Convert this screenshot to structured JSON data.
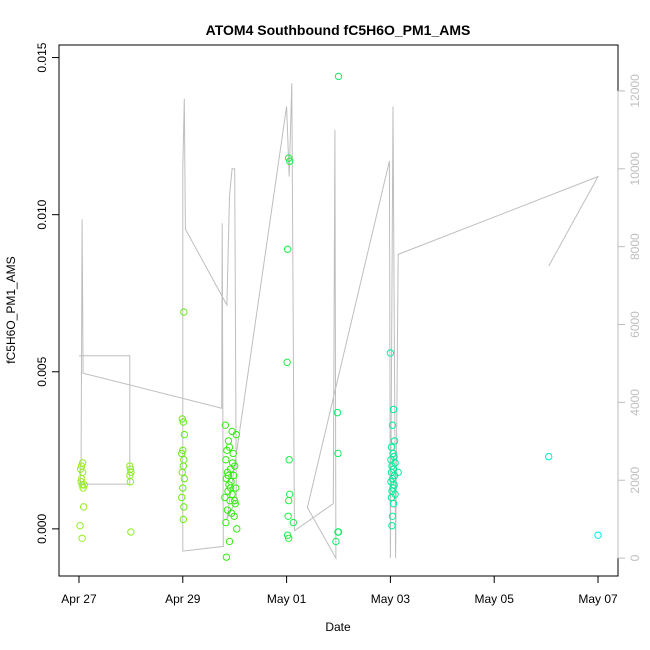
{
  "chart_data": {
    "type": "scatter",
    "title": "ATOM4 Southbound fC5H6O_PM1_AMS",
    "xlabel": "Date",
    "ylabel": "fC5H6O_PM1_AMS",
    "xlim": [
      -0.385,
      10.385
    ],
    "xticks": [
      {
        "value": 0,
        "label": "Apr 27"
      },
      {
        "value": 2,
        "label": "Apr 29"
      },
      {
        "value": 4,
        "label": "May 01"
      },
      {
        "value": 6,
        "label": "May 03"
      },
      {
        "value": 8,
        "label": "May 05"
      },
      {
        "value": 10,
        "label": "May 07"
      }
    ],
    "ylim": [
      -0.0015,
      0.0154
    ],
    "yticks": [
      {
        "value": 0,
        "label": "0.000"
      },
      {
        "value": 0.005,
        "label": "0.005"
      },
      {
        "value": 0.01,
        "label": "0.010"
      },
      {
        "value": 0.015,
        "label": "0.015"
      }
    ],
    "y2lim": [
      -460,
      13180
    ],
    "y2ticks": [
      0,
      2000,
      4000,
      6000,
      8000,
      10000,
      12000
    ],
    "series": [
      {
        "type": "line",
        "axis": "y2",
        "color": "#bebebe",
        "x": [
          0.0,
          0.98,
          0.98,
          0.03,
          0.04,
          0.06,
          0.08,
          2.75,
          2.76,
          2.78,
          2.0,
          2.0,
          2.03,
          2.05,
          2.85,
          2.9,
          2.95,
          3.0,
          3.03,
          2.85,
          4.0,
          4.05,
          4.1,
          4.15,
          4.9,
          4.93,
          4.95,
          4.4,
          5.98,
          6.0,
          6.05,
          6.1,
          6.15,
          10.0,
          9.05
        ],
        "values": [
          5200,
          5200,
          1900,
          1900,
          2500,
          8700,
          4750,
          3850,
          8600,
          300,
          180,
          10000,
          11800,
          8450,
          6500,
          9300,
          10000,
          10000,
          1500,
          1000,
          11600,
          9800,
          12200,
          700,
          1400,
          11000,
          0,
          1300,
          10200,
          0,
          11600,
          0,
          7800,
          9800,
          7500
        ]
      },
      {
        "color": "#99ee22",
        "x": [
          0.03,
          0.05,
          0.07,
          0.04,
          0.06,
          0.08,
          0.05,
          0.07,
          0.09,
          0.02,
          0.06,
          0.1
        ],
        "values": [
          0.0019,
          0.002,
          0.0021,
          0.0015,
          0.0014,
          0.0013,
          0.0016,
          0.0018,
          0.0007,
          0.0001,
          -0.0003,
          0.0014
        ]
      },
      {
        "color": "#8eee22",
        "x": [
          0.98,
          0.99,
          1.0,
          0.98,
          0.99,
          1.0
        ],
        "values": [
          0.002,
          0.0019,
          0.0018,
          0.0017,
          0.0015,
          -0.0001
        ]
      },
      {
        "color": "#66ee11",
        "x": [
          2.02,
          1.99,
          2.01,
          2.03,
          2.0,
          1.98,
          2.02,
          2.01,
          1.99,
          2.03,
          2.0,
          1.98,
          2.02,
          2.01
        ],
        "values": [
          0.0069,
          0.0035,
          0.0034,
          0.003,
          0.0025,
          0.0024,
          0.0022,
          0.002,
          0.0018,
          0.0016,
          0.0013,
          0.001,
          0.0007,
          0.0003
        ]
      },
      {
        "color": "#33ee11",
        "x": [
          2.82,
          2.95,
          3.03,
          2.88,
          2.9,
          2.85,
          2.97,
          2.83,
          3.0,
          2.92,
          2.86,
          2.98,
          2.84,
          2.93,
          2.89,
          3.02,
          2.87,
          2.95,
          2.81,
          2.91,
          3.01,
          2.86,
          2.94,
          2.99,
          2.83,
          3.04,
          2.9,
          2.84,
          2.96,
          2.88,
          2.92,
          3.0
        ],
        "values": [
          0.0033,
          0.0031,
          0.003,
          0.0028,
          0.0026,
          0.0025,
          0.0024,
          0.0022,
          0.002,
          0.0019,
          0.0018,
          0.0017,
          0.0016,
          0.0015,
          0.0014,
          0.0013,
          0.0012,
          0.0011,
          0.001,
          0.0009,
          0.0008,
          0.0006,
          0.0005,
          0.0004,
          0.0002,
          0,
          -0.0004,
          -0.0009,
          0.0021,
          0.0017,
          0.0013,
          0.0009
        ]
      },
      {
        "color": "#22ee44",
        "x": [
          4.04,
          4.06,
          4.02,
          4.01,
          4.05,
          4.06,
          4.04,
          4.03,
          4.02,
          4.04,
          4.13
        ],
        "values": [
          0.0118,
          0.0117,
          0.0089,
          0.0053,
          0.0022,
          0.0011,
          0.0009,
          0.0004,
          -0.0002,
          -0.0003,
          0.0002
        ]
      },
      {
        "color": "#11ee66",
        "x": [
          5.0,
          4.98,
          4.99,
          5.0,
          4.99,
          4.95
        ],
        "values": [
          0.0144,
          0.0037,
          0.0024,
          -0.0001,
          -0.0001,
          -0.0004
        ]
      },
      {
        "color": "#00ee99",
        "x": [
          6.0,
          6.06,
          6.04,
          6.08,
          6.02,
          6.05,
          6.07,
          6.01,
          6.09,
          6.03,
          6.06,
          6.02,
          6.08,
          6.04,
          6.01,
          6.07,
          6.05,
          6.03,
          6.09,
          6.02,
          6.06,
          6.04,
          6.03,
          6.15
        ],
        "values": [
          0.0056,
          0.0038,
          0.0033,
          0.0028,
          0.0026,
          0.0024,
          0.0023,
          0.0022,
          0.0021,
          0.002,
          0.0019,
          0.0018,
          0.0017,
          0.0016,
          0.0015,
          0.0014,
          0.0013,
          0.0012,
          0.0011,
          0.001,
          0.0008,
          0.0004,
          0.0001,
          0.0018
        ]
      },
      {
        "color": "#00eecc",
        "x": [
          9.05
        ],
        "values": [
          0.0023
        ]
      },
      {
        "color": "#00eeee",
        "x": [
          10.0
        ],
        "values": [
          -0.0002
        ]
      }
    ]
  }
}
